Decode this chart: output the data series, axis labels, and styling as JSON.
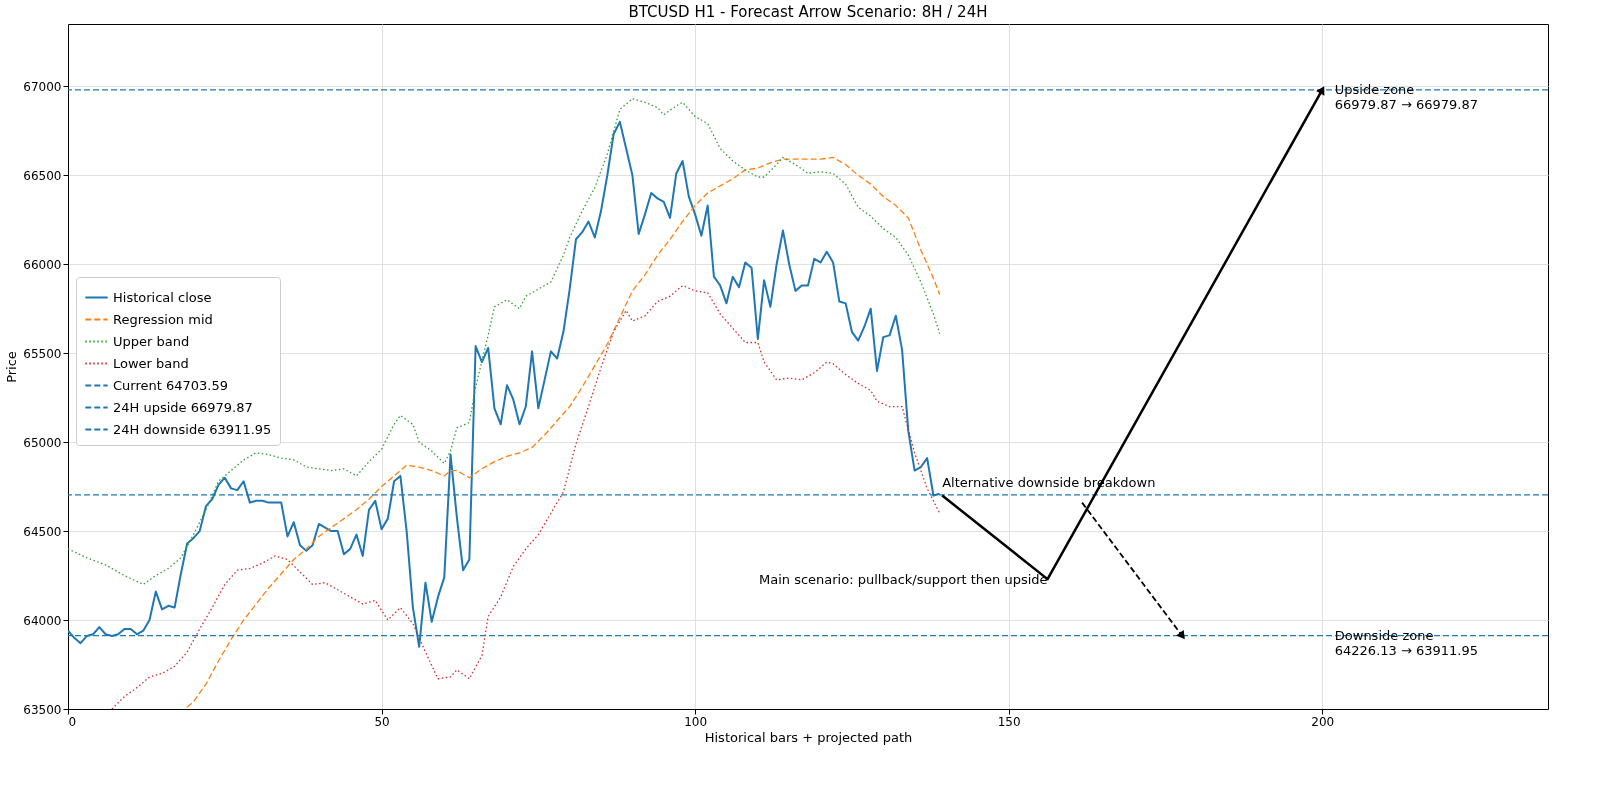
{
  "chart_data": {
    "type": "line",
    "title": "BTCUSD H1 - Forecast Arrow Scenario: 8H / 24H",
    "xlabel": "Historical bars + projected path",
    "ylabel": "Price",
    "xlim": [
      0,
      236
    ],
    "xticks": [
      0,
      50,
      100,
      150,
      200
    ],
    "ylim": [
      63500,
      67350
    ],
    "yticks": [
      63500,
      64000,
      64500,
      65000,
      65500,
      66000,
      66500,
      67000
    ],
    "grid": true,
    "legend": "left",
    "series": [
      {
        "name": "Historical close",
        "color": "#1f77b4",
        "line_style": "solid",
        "x": [
          0,
          1,
          2,
          3,
          4,
          5,
          6,
          7,
          8,
          9,
          10,
          11,
          12,
          13,
          14,
          15,
          16,
          17,
          18,
          19,
          20,
          21,
          22,
          23,
          24,
          25,
          26,
          27,
          28,
          29,
          30,
          31,
          32,
          33,
          34,
          35,
          36,
          37,
          38,
          39,
          40,
          41,
          42,
          43,
          44,
          45,
          46,
          47,
          48,
          49,
          50,
          51,
          52,
          53,
          54,
          55,
          56,
          57,
          58,
          59,
          60,
          61,
          62,
          63,
          64,
          65,
          66,
          67,
          68,
          69,
          70,
          71,
          72,
          73,
          74,
          75,
          76,
          77,
          78,
          79,
          80,
          81,
          82,
          83,
          84,
          85,
          86,
          87,
          88,
          89,
          90,
          91,
          92,
          93,
          94,
          95,
          96,
          97,
          98,
          99,
          100,
          101,
          102,
          103,
          104,
          105,
          106,
          107,
          108,
          109,
          110,
          111,
          112,
          113,
          114,
          115,
          116,
          117,
          118,
          119,
          120,
          121,
          122,
          123,
          124,
          125,
          126,
          127,
          128,
          129,
          130,
          131,
          132,
          133,
          134,
          135,
          136,
          137,
          138,
          139
        ],
        "values": [
          63940,
          63900,
          63870,
          63910,
          63920,
          63960,
          63920,
          63910,
          63920,
          63950,
          63950,
          63920,
          63940,
          64000,
          64160,
          64060,
          64080,
          64070,
          64260,
          64430,
          64460,
          64500,
          64640,
          64680,
          64760,
          64800,
          64740,
          64730,
          64780,
          64660,
          64670,
          64670,
          64660,
          64660,
          64660,
          64470,
          64550,
          64420,
          64390,
          64420,
          64540,
          64520,
          64500,
          64500,
          64370,
          64400,
          64480,
          64360,
          64620,
          64670,
          64510,
          64570,
          64780,
          64810,
          64500,
          64070,
          63850,
          64210,
          63990,
          64130,
          64240,
          64930,
          64580,
          64280,
          64340,
          65540,
          65450,
          65530,
          65190,
          65100,
          65320,
          65240,
          65100,
          65200,
          65510,
          65190,
          65350,
          65510,
          65470,
          65620,
          65860,
          66140,
          66180,
          66240,
          66150,
          66300,
          66500,
          66730,
          66800,
          66650,
          66500,
          66170,
          66280,
          66400,
          66370,
          66350,
          66260,
          66510,
          66580,
          66380,
          66280,
          66160,
          66330,
          65930,
          65880,
          65780,
          65930,
          65870,
          66010,
          65980,
          65580,
          65910,
          65760,
          66000,
          66190,
          66000,
          65850,
          65880,
          65880,
          66030,
          66010,
          66070,
          66010,
          65790,
          65780,
          65620,
          65570,
          65650,
          65750,
          65400,
          65590,
          65600,
          65710,
          65520,
          65060,
          64840,
          64860,
          64910,
          64700,
          64710
        ]
      },
      {
        "name": "Regression mid",
        "color": "#ff7f0e",
        "line_style": "dashed",
        "x": [
          19,
          20,
          22,
          24,
          26,
          28,
          30,
          32,
          34,
          36,
          38,
          40,
          42,
          44,
          46,
          48,
          50,
          52,
          54,
          56,
          58,
          60,
          61,
          62,
          64,
          66,
          68,
          70,
          72,
          74,
          76,
          78,
          80,
          82,
          84,
          86,
          88,
          90,
          92,
          94,
          96,
          98,
          100,
          102,
          104,
          106,
          108,
          110,
          112,
          114,
          116,
          118,
          120,
          122,
          124,
          126,
          128,
          130,
          132,
          134,
          136,
          138,
          139
        ],
        "values": [
          63510,
          63540,
          63640,
          63770,
          63890,
          64000,
          64090,
          64180,
          64260,
          64340,
          64400,
          64470,
          64520,
          64570,
          64620,
          64680,
          64750,
          64810,
          64870,
          64860,
          64840,
          64810,
          64840,
          64840,
          64800,
          64850,
          64890,
          64920,
          64940,
          64970,
          65040,
          65120,
          65200,
          65310,
          65430,
          65550,
          65700,
          65850,
          65940,
          66050,
          66140,
          66240,
          66330,
          66400,
          66440,
          66480,
          66530,
          66540,
          66570,
          66590,
          66590,
          66590,
          66590,
          66600,
          66560,
          66500,
          66450,
          66380,
          66330,
          66260,
          66080,
          65920,
          65830
        ]
      },
      {
        "name": "Upper band",
        "color": "#2ca02c",
        "line_style": "dotted",
        "x": [
          0,
          3,
          6,
          9,
          12,
          14,
          16,
          18,
          20,
          22,
          24,
          26,
          28,
          30,
          32,
          34,
          36,
          38,
          40,
          42,
          44,
          46,
          48,
          50,
          52,
          53,
          55,
          56,
          58,
          60,
          61,
          62,
          64,
          65,
          67,
          68,
          70,
          72,
          73,
          75,
          77,
          79,
          80,
          82,
          84,
          86,
          88,
          90,
          92,
          94,
          95,
          97,
          98,
          100,
          102,
          103,
          104,
          106,
          108,
          110,
          111,
          113,
          114,
          116,
          118,
          120,
          122,
          124,
          126,
          128,
          130,
          132,
          134,
          136,
          138,
          139
        ],
        "values": [
          64400,
          64350,
          64310,
          64250,
          64200,
          64250,
          64290,
          64350,
          64480,
          64620,
          64780,
          64840,
          64900,
          64940,
          64930,
          64910,
          64900,
          64860,
          64850,
          64840,
          64850,
          64810,
          64890,
          64960,
          65100,
          65150,
          65100,
          65000,
          64950,
          64880,
          64950,
          65080,
          65110,
          65310,
          65600,
          65760,
          65800,
          65750,
          65820,
          65860,
          65900,
          66050,
          66150,
          66300,
          66430,
          66620,
          66870,
          66930,
          66910,
          66880,
          66840,
          66890,
          66910,
          66830,
          66790,
          66720,
          66650,
          66580,
          66530,
          66490,
          66490,
          66560,
          66600,
          66560,
          66510,
          66520,
          66510,
          66450,
          66320,
          66270,
          66200,
          66150,
          66050,
          65900,
          65720,
          65610
        ]
      },
      {
        "name": "Lower band",
        "color": "#d62728",
        "line_style": "dotted",
        "x": [
          7,
          9,
          11,
          13,
          15,
          17,
          19,
          21,
          23,
          25,
          27,
          29,
          31,
          33,
          35,
          37,
          39,
          41,
          43,
          45,
          47,
          49,
          51,
          53,
          55,
          57,
          59,
          61,
          62,
          64,
          66,
          67,
          69,
          71,
          73,
          75,
          77,
          79,
          81,
          83,
          85,
          87,
          89,
          90,
          92,
          94,
          96,
          98,
          100,
          102,
          104,
          106,
          108,
          110,
          111,
          113,
          115,
          117,
          119,
          121,
          122,
          124,
          126,
          128,
          129,
          131,
          133,
          135,
          137,
          139
        ],
        "values": [
          63500,
          63570,
          63620,
          63680,
          63700,
          63740,
          63820,
          63950,
          64070,
          64200,
          64280,
          64290,
          64320,
          64360,
          64340,
          64270,
          64200,
          64210,
          64170,
          64130,
          64090,
          64110,
          64000,
          64070,
          63980,
          63820,
          63670,
          63680,
          63720,
          63670,
          63800,
          64020,
          64130,
          64300,
          64400,
          64480,
          64600,
          64720,
          64990,
          65200,
          65420,
          65620,
          65740,
          65680,
          65710,
          65790,
          65820,
          65880,
          65850,
          65840,
          65720,
          65640,
          65560,
          65560,
          65450,
          65350,
          65360,
          65350,
          65390,
          65450,
          65440,
          65380,
          65330,
          65290,
          65230,
          65200,
          65200,
          64940,
          64740,
          64600
        ]
      },
      {
        "color": "#000000",
        "line_style": "solid",
        "x": [
          139.4,
          156.2,
          200
        ],
        "values": [
          64700,
          64230,
          66980
        ]
      },
      {
        "color": "#000000",
        "line_style": "dashed",
        "x": [
          161.7,
          177.7
        ],
        "values": [
          64660,
          63910
        ]
      }
    ],
    "ref_lines": [
      {
        "axis": "y",
        "value": 64703.59,
        "label": "Current 64703.59",
        "color": "#1f77b4",
        "line_style": "dashed"
      },
      {
        "axis": "y",
        "value": 66979.87,
        "label": "24H upside 66979.87",
        "color": "#1f77b4",
        "line_style": "dashed"
      },
      {
        "axis": "y",
        "value": 63911.95,
        "label": "24H downside 63911.95",
        "color": "#1f77b4",
        "line_style": "dashed"
      }
    ],
    "annotations": [
      {
        "text": "Alternative downside breakdown",
        "x": 139.4,
        "y": 64703.59
      },
      {
        "text": "Main scenario: pullback/support then upside",
        "x": 156.2,
        "y": 64226.13
      },
      {
        "text": "Upside zone\n66979.87 → 66979.87",
        "x": 202,
        "y": 66979.87
      },
      {
        "text": "Downside zone\n64226.13 → 63911.95",
        "x": 202,
        "y": 63911.95
      }
    ]
  }
}
